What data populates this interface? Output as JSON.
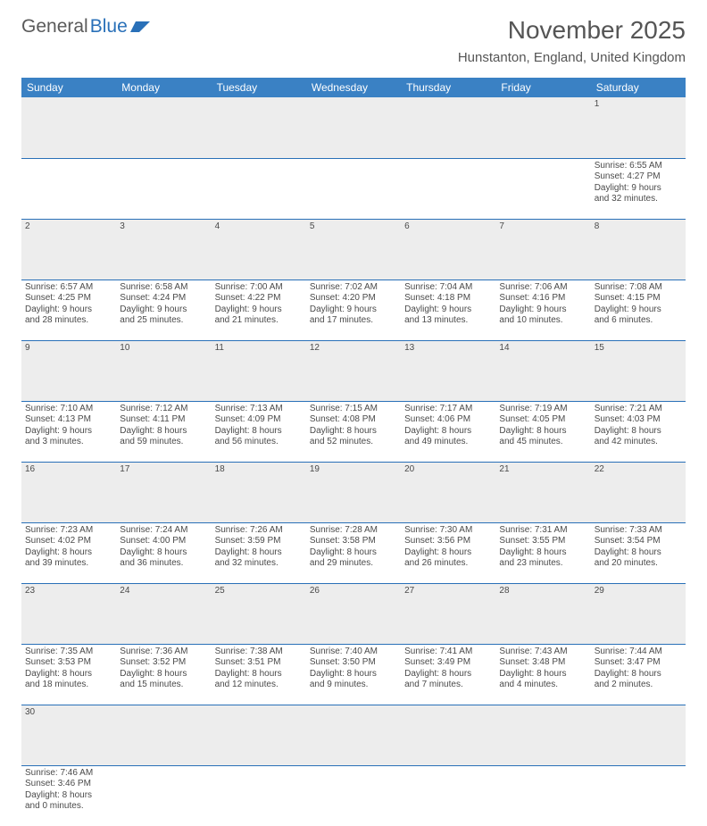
{
  "logo": {
    "text1": "General",
    "text2": "Blue"
  },
  "title": "November 2025",
  "location": "Hunstanton, England, United Kingdom",
  "colors": {
    "header_bg": "#3a81c4",
    "header_text": "#ffffff",
    "daynum_bg": "#ededed",
    "row_divider": "#2970b8",
    "text": "#4a4a4a",
    "logo_blue": "#2970b8"
  },
  "weekdays": [
    "Sunday",
    "Monday",
    "Tuesday",
    "Wednesday",
    "Thursday",
    "Friday",
    "Saturday"
  ],
  "weeks": [
    {
      "nums": [
        "",
        "",
        "",
        "",
        "",
        "",
        "1"
      ],
      "cells": [
        null,
        null,
        null,
        null,
        null,
        null,
        {
          "sunrise": "Sunrise: 6:55 AM",
          "sunset": "Sunset: 4:27 PM",
          "day1": "Daylight: 9 hours",
          "day2": "and 32 minutes."
        }
      ]
    },
    {
      "nums": [
        "2",
        "3",
        "4",
        "5",
        "6",
        "7",
        "8"
      ],
      "cells": [
        {
          "sunrise": "Sunrise: 6:57 AM",
          "sunset": "Sunset: 4:25 PM",
          "day1": "Daylight: 9 hours",
          "day2": "and 28 minutes."
        },
        {
          "sunrise": "Sunrise: 6:58 AM",
          "sunset": "Sunset: 4:24 PM",
          "day1": "Daylight: 9 hours",
          "day2": "and 25 minutes."
        },
        {
          "sunrise": "Sunrise: 7:00 AM",
          "sunset": "Sunset: 4:22 PM",
          "day1": "Daylight: 9 hours",
          "day2": "and 21 minutes."
        },
        {
          "sunrise": "Sunrise: 7:02 AM",
          "sunset": "Sunset: 4:20 PM",
          "day1": "Daylight: 9 hours",
          "day2": "and 17 minutes."
        },
        {
          "sunrise": "Sunrise: 7:04 AM",
          "sunset": "Sunset: 4:18 PM",
          "day1": "Daylight: 9 hours",
          "day2": "and 13 minutes."
        },
        {
          "sunrise": "Sunrise: 7:06 AM",
          "sunset": "Sunset: 4:16 PM",
          "day1": "Daylight: 9 hours",
          "day2": "and 10 minutes."
        },
        {
          "sunrise": "Sunrise: 7:08 AM",
          "sunset": "Sunset: 4:15 PM",
          "day1": "Daylight: 9 hours",
          "day2": "and 6 minutes."
        }
      ]
    },
    {
      "nums": [
        "9",
        "10",
        "11",
        "12",
        "13",
        "14",
        "15"
      ],
      "cells": [
        {
          "sunrise": "Sunrise: 7:10 AM",
          "sunset": "Sunset: 4:13 PM",
          "day1": "Daylight: 9 hours",
          "day2": "and 3 minutes."
        },
        {
          "sunrise": "Sunrise: 7:12 AM",
          "sunset": "Sunset: 4:11 PM",
          "day1": "Daylight: 8 hours",
          "day2": "and 59 minutes."
        },
        {
          "sunrise": "Sunrise: 7:13 AM",
          "sunset": "Sunset: 4:09 PM",
          "day1": "Daylight: 8 hours",
          "day2": "and 56 minutes."
        },
        {
          "sunrise": "Sunrise: 7:15 AM",
          "sunset": "Sunset: 4:08 PM",
          "day1": "Daylight: 8 hours",
          "day2": "and 52 minutes."
        },
        {
          "sunrise": "Sunrise: 7:17 AM",
          "sunset": "Sunset: 4:06 PM",
          "day1": "Daylight: 8 hours",
          "day2": "and 49 minutes."
        },
        {
          "sunrise": "Sunrise: 7:19 AM",
          "sunset": "Sunset: 4:05 PM",
          "day1": "Daylight: 8 hours",
          "day2": "and 45 minutes."
        },
        {
          "sunrise": "Sunrise: 7:21 AM",
          "sunset": "Sunset: 4:03 PM",
          "day1": "Daylight: 8 hours",
          "day2": "and 42 minutes."
        }
      ]
    },
    {
      "nums": [
        "16",
        "17",
        "18",
        "19",
        "20",
        "21",
        "22"
      ],
      "cells": [
        {
          "sunrise": "Sunrise: 7:23 AM",
          "sunset": "Sunset: 4:02 PM",
          "day1": "Daylight: 8 hours",
          "day2": "and 39 minutes."
        },
        {
          "sunrise": "Sunrise: 7:24 AM",
          "sunset": "Sunset: 4:00 PM",
          "day1": "Daylight: 8 hours",
          "day2": "and 36 minutes."
        },
        {
          "sunrise": "Sunrise: 7:26 AM",
          "sunset": "Sunset: 3:59 PM",
          "day1": "Daylight: 8 hours",
          "day2": "and 32 minutes."
        },
        {
          "sunrise": "Sunrise: 7:28 AM",
          "sunset": "Sunset: 3:58 PM",
          "day1": "Daylight: 8 hours",
          "day2": "and 29 minutes."
        },
        {
          "sunrise": "Sunrise: 7:30 AM",
          "sunset": "Sunset: 3:56 PM",
          "day1": "Daylight: 8 hours",
          "day2": "and 26 minutes."
        },
        {
          "sunrise": "Sunrise: 7:31 AM",
          "sunset": "Sunset: 3:55 PM",
          "day1": "Daylight: 8 hours",
          "day2": "and 23 minutes."
        },
        {
          "sunrise": "Sunrise: 7:33 AM",
          "sunset": "Sunset: 3:54 PM",
          "day1": "Daylight: 8 hours",
          "day2": "and 20 minutes."
        }
      ]
    },
    {
      "nums": [
        "23",
        "24",
        "25",
        "26",
        "27",
        "28",
        "29"
      ],
      "cells": [
        {
          "sunrise": "Sunrise: 7:35 AM",
          "sunset": "Sunset: 3:53 PM",
          "day1": "Daylight: 8 hours",
          "day2": "and 18 minutes."
        },
        {
          "sunrise": "Sunrise: 7:36 AM",
          "sunset": "Sunset: 3:52 PM",
          "day1": "Daylight: 8 hours",
          "day2": "and 15 minutes."
        },
        {
          "sunrise": "Sunrise: 7:38 AM",
          "sunset": "Sunset: 3:51 PM",
          "day1": "Daylight: 8 hours",
          "day2": "and 12 minutes."
        },
        {
          "sunrise": "Sunrise: 7:40 AM",
          "sunset": "Sunset: 3:50 PM",
          "day1": "Daylight: 8 hours",
          "day2": "and 9 minutes."
        },
        {
          "sunrise": "Sunrise: 7:41 AM",
          "sunset": "Sunset: 3:49 PM",
          "day1": "Daylight: 8 hours",
          "day2": "and 7 minutes."
        },
        {
          "sunrise": "Sunrise: 7:43 AM",
          "sunset": "Sunset: 3:48 PM",
          "day1": "Daylight: 8 hours",
          "day2": "and 4 minutes."
        },
        {
          "sunrise": "Sunrise: 7:44 AM",
          "sunset": "Sunset: 3:47 PM",
          "day1": "Daylight: 8 hours",
          "day2": "and 2 minutes."
        }
      ]
    },
    {
      "nums": [
        "30",
        "",
        "",
        "",
        "",
        "",
        ""
      ],
      "cells": [
        {
          "sunrise": "Sunrise: 7:46 AM",
          "sunset": "Sunset: 3:46 PM",
          "day1": "Daylight: 8 hours",
          "day2": "and 0 minutes."
        },
        null,
        null,
        null,
        null,
        null,
        null
      ]
    }
  ]
}
